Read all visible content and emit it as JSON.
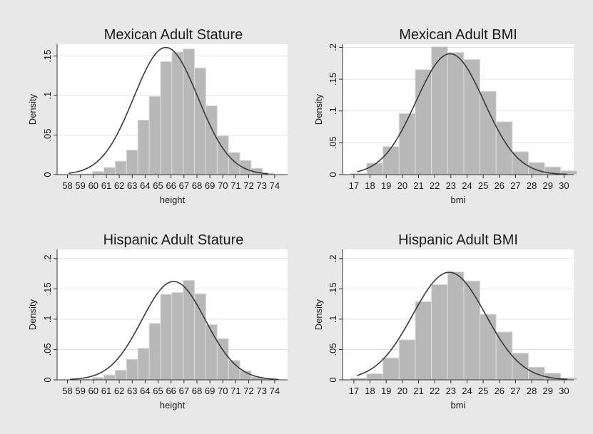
{
  "figure": {
    "background": "#e8e8e8",
    "plot_background": "#ffffff",
    "bar_color": "#b8b8b8",
    "curve_color": "#3a3a3a"
  },
  "chart_data": [
    {
      "type": "bar",
      "title": "Mexican Adult Stature",
      "xlabel": "height",
      "ylabel": "Density",
      "categories": [
        "58",
        "59",
        "60",
        "61",
        "62",
        "63",
        "64",
        "65",
        "66",
        "67",
        "68",
        "69",
        "70",
        "71",
        "72",
        "73",
        "74"
      ],
      "values": [
        0.001,
        0.004,
        0.009,
        0.017,
        0.031,
        0.069,
        0.099,
        0.143,
        0.155,
        0.159,
        0.135,
        0.087,
        0.049,
        0.028,
        0.018,
        0.008,
        0.002
      ],
      "bars_x_range": [
        59.5,
        73.5
      ],
      "x_ticks": [
        "58",
        "59",
        "60",
        "61",
        "62",
        "63",
        "64",
        "65",
        "66",
        "67",
        "68",
        "69",
        "70",
        "71",
        "72",
        "73",
        "74"
      ],
      "y_ticks": [
        "0",
        ".05",
        ".1",
        ".15"
      ],
      "ylim": [
        0,
        0.165
      ],
      "xlim": [
        57.2,
        75
      ],
      "normal_curve": {
        "mean": 65.6,
        "sd": 2.48,
        "x_range": [
          58.1,
          73.5
        ]
      },
      "grid": true
    },
    {
      "type": "bar",
      "title": "Mexican Adult BMI",
      "xlabel": "bmi",
      "ylabel": "Density",
      "categories": [
        "17",
        "18",
        "19",
        "20",
        "21",
        "22",
        "23",
        "24",
        "25",
        "26",
        "27",
        "28",
        "29",
        "30"
      ],
      "values": [
        0.002,
        0.018,
        0.044,
        0.096,
        0.165,
        0.201,
        0.192,
        0.181,
        0.131,
        0.083,
        0.036,
        0.019,
        0.012,
        0.006
      ],
      "bars_x_range": [
        17.3,
        30.3
      ],
      "x_ticks": [
        "17",
        "18",
        "19",
        "20",
        "21",
        "22",
        "23",
        "24",
        "25",
        "26",
        "27",
        "28",
        "29",
        "30"
      ],
      "y_ticks": [
        "0",
        ".05",
        ".1",
        ".15",
        ".2"
      ],
      "ylim": [
        0,
        0.205
      ],
      "xlim": [
        16.3,
        30.6
      ],
      "normal_curve": {
        "mean": 22.95,
        "sd": 2.1,
        "x_range": [
          17.2,
          30.2
        ]
      },
      "grid": true
    },
    {
      "type": "bar",
      "title": "Hispanic Adult Stature",
      "xlabel": "height",
      "ylabel": "Density",
      "categories": [
        "58",
        "59",
        "60",
        "61",
        "62",
        "63",
        "64",
        "65",
        "66",
        "67",
        "68",
        "69",
        "70",
        "71",
        "72",
        "73",
        "74"
      ],
      "values": [
        0.001,
        0.004,
        0.008,
        0.016,
        0.034,
        0.052,
        0.093,
        0.141,
        0.144,
        0.164,
        0.142,
        0.091,
        0.068,
        0.032,
        0.015,
        0.005,
        0.002
      ],
      "bars_x_range": [
        59.5,
        73.5
      ],
      "x_ticks": [
        "58",
        "59",
        "60",
        "61",
        "62",
        "63",
        "64",
        "65",
        "66",
        "67",
        "68",
        "69",
        "70",
        "71",
        "72",
        "73",
        "74"
      ],
      "y_ticks": [
        "0",
        ".05",
        ".1",
        ".15",
        ".2"
      ],
      "ylim": [
        0,
        0.215
      ],
      "xlim": [
        57.2,
        75
      ],
      "normal_curve": {
        "mean": 66.2,
        "sd": 2.46,
        "x_range": [
          58.2,
          74.3
        ]
      },
      "grid": true
    },
    {
      "type": "bar",
      "title": "Hispanic Adult BMI",
      "xlabel": "bmi",
      "ylabel": "Density",
      "categories": [
        "17",
        "18",
        "19",
        "20",
        "21",
        "22",
        "23",
        "24",
        "25",
        "26",
        "27",
        "28",
        "29",
        "30"
      ],
      "values": [
        0.003,
        0.01,
        0.036,
        0.066,
        0.129,
        0.157,
        0.178,
        0.163,
        0.108,
        0.079,
        0.044,
        0.021,
        0.011,
        0.003
      ],
      "bars_x_range": [
        17.3,
        30.3
      ],
      "x_ticks": [
        "17",
        "18",
        "19",
        "20",
        "21",
        "22",
        "23",
        "24",
        "25",
        "26",
        "27",
        "28",
        "29",
        "30"
      ],
      "y_ticks": [
        "0",
        ".05",
        ".1",
        ".15",
        ".2"
      ],
      "ylim": [
        0,
        0.215
      ],
      "xlim": [
        16.3,
        30.6
      ],
      "normal_curve": {
        "mean": 22.9,
        "sd": 2.25,
        "x_range": [
          17.2,
          30.2
        ]
      },
      "grid": true
    }
  ]
}
